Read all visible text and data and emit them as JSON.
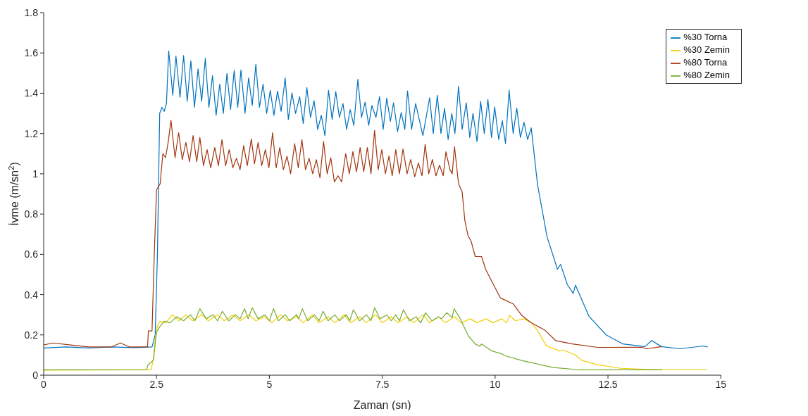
{
  "chart_data": {
    "type": "line",
    "xlabel": "Zaman (sn)",
    "ylabel": "İvme (m/sn$^{2}$)",
    "xlim": [
      0,
      15
    ],
    "xticks": [
      0,
      2.5,
      5,
      7.5,
      10,
      12.5,
      15
    ],
    "ylim": [
      0,
      1.8
    ],
    "yticks": [
      0,
      0.2,
      0.4,
      0.6,
      0.8,
      1,
      1.2,
      1.4,
      1.6,
      1.8
    ],
    "legend": "top right",
    "series": [
      {
        "name": "%30 Torna",
        "color": "#0072bd",
        "x": [
          0,
          0.5,
          1,
          1.5,
          2,
          2.4,
          2.47,
          2.52,
          2.57,
          2.62,
          2.67,
          2.72,
          2.77,
          2.86,
          2.93,
          3.02,
          3.1,
          3.18,
          3.26,
          3.34,
          3.42,
          3.5,
          3.58,
          3.66,
          3.74,
          3.82,
          3.9,
          3.98,
          4.06,
          4.14,
          4.22,
          4.3,
          4.37,
          4.46,
          4.54,
          4.62,
          4.7,
          4.78,
          4.86,
          4.94,
          5.02,
          5.1,
          5.18,
          5.26,
          5.35,
          5.42,
          5.5,
          5.58,
          5.67,
          5.75,
          5.83,
          5.91,
          5.99,
          6.07,
          6.15,
          6.23,
          6.31,
          6.39,
          6.47,
          6.55,
          6.63,
          6.71,
          6.79,
          6.87,
          6.96,
          7.04,
          7.12,
          7.2,
          7.27,
          7.36,
          7.44,
          7.52,
          7.6,
          7.68,
          7.75,
          7.84,
          7.92,
          8.0,
          8.06,
          8.15,
          8.24,
          8.4,
          8.55,
          8.63,
          8.72,
          8.8,
          8.88,
          8.96,
          9.04,
          9.11,
          9.19,
          9.27,
          9.36,
          9.44,
          9.51,
          9.6,
          9.68,
          9.76,
          9.84,
          9.92,
          9.99,
          10.08,
          10.16,
          10.23,
          10.31,
          10.4,
          10.48,
          10.56,
          10.64,
          10.72,
          10.8,
          10.94,
          11.15,
          11.38,
          11.45,
          11.6,
          11.73,
          11.78,
          12.08,
          12.46,
          12.83,
          13.32,
          13.47,
          13.68,
          14.1,
          14.61,
          14.71
        ],
        "values": [
          0.135,
          0.14,
          0.135,
          0.14,
          0.137,
          0.14,
          0.2,
          0.6,
          1.3,
          1.33,
          1.31,
          1.35,
          1.61,
          1.39,
          1.584,
          1.38,
          1.587,
          1.36,
          1.561,
          1.33,
          1.521,
          1.36,
          1.573,
          1.33,
          1.487,
          1.29,
          1.445,
          1.3,
          1.498,
          1.32,
          1.513,
          1.33,
          1.516,
          1.3,
          1.476,
          1.34,
          1.544,
          1.33,
          1.445,
          1.3,
          1.414,
          1.29,
          1.411,
          1.31,
          1.476,
          1.27,
          1.401,
          1.3,
          1.383,
          1.25,
          1.428,
          1.28,
          1.363,
          1.22,
          1.29,
          1.19,
          1.414,
          1.27,
          1.408,
          1.28,
          1.349,
          1.22,
          1.318,
          1.24,
          1.469,
          1.28,
          1.356,
          1.24,
          1.339,
          1.28,
          1.383,
          1.22,
          1.376,
          1.26,
          1.352,
          1.21,
          1.304,
          1.22,
          1.412,
          1.22,
          1.349,
          1.19,
          1.378,
          1.2,
          1.39,
          1.2,
          1.325,
          1.17,
          1.3,
          1.2,
          1.435,
          1.22,
          1.352,
          1.18,
          1.3,
          1.16,
          1.359,
          1.2,
          1.369,
          1.18,
          1.332,
          1.17,
          1.263,
          1.15,
          1.415,
          1.2,
          1.326,
          1.18,
          1.256,
          1.17,
          1.228,
          0.946,
          0.688,
          0.526,
          0.55,
          0.45,
          0.406,
          0.447,
          0.292,
          0.2,
          0.155,
          0.142,
          0.172,
          0.142,
          0.131,
          0.145,
          0.14
        ]
      },
      {
        "name": "%30 Zemin",
        "color": "#f2cf00",
        "x": [
          0,
          1,
          2.0,
          2.38,
          2.43,
          2.48,
          2.53,
          2.58,
          2.7,
          2.85,
          3.0,
          3.15,
          3.3,
          3.5,
          3.65,
          3.85,
          4.0,
          4.2,
          4.35,
          4.55,
          4.7,
          4.9,
          5.05,
          5.25,
          5.4,
          5.6,
          5.75,
          5.95,
          6.1,
          6.3,
          6.45,
          6.65,
          6.8,
          7.0,
          7.15,
          7.35,
          7.5,
          7.7,
          7.85,
          8.05,
          8.2,
          8.4,
          8.55,
          8.75,
          8.9,
          9.1,
          9.25,
          9.45,
          9.6,
          9.8,
          9.95,
          10.15,
          10.25,
          10.32,
          10.45,
          10.64,
          10.82,
          10.95,
          11.13,
          11.2,
          11.43,
          11.5,
          11.76,
          11.92,
          12.27,
          12.78,
          13.5,
          14.7
        ],
        "values": [
          0.025,
          0.026,
          0.027,
          0.027,
          0.08,
          0.2,
          0.25,
          0.268,
          0.26,
          0.3,
          0.27,
          0.3,
          0.27,
          0.3,
          0.27,
          0.3,
          0.27,
          0.3,
          0.27,
          0.3,
          0.27,
          0.29,
          0.26,
          0.3,
          0.27,
          0.29,
          0.26,
          0.3,
          0.26,
          0.29,
          0.26,
          0.3,
          0.26,
          0.29,
          0.26,
          0.3,
          0.26,
          0.29,
          0.26,
          0.29,
          0.26,
          0.3,
          0.26,
          0.29,
          0.26,
          0.29,
          0.26,
          0.28,
          0.26,
          0.28,
          0.26,
          0.28,
          0.26,
          0.297,
          0.27,
          0.28,
          0.258,
          0.217,
          0.148,
          0.14,
          0.12,
          0.125,
          0.103,
          0.073,
          0.052,
          0.034,
          0.028,
          0.028
        ]
      },
      {
        "name": "%80 Torna",
        "color": "#a2340e",
        "x": [
          0,
          0.2,
          0.6,
          1.0,
          1.5,
          1.7,
          1.9,
          2.3,
          2.32,
          2.4,
          2.45,
          2.5,
          2.58,
          2.64,
          2.7,
          2.76,
          2.82,
          2.91,
          2.99,
          3.07,
          3.15,
          3.23,
          3.31,
          3.39,
          3.46,
          3.54,
          3.62,
          3.7,
          3.79,
          3.87,
          3.95,
          4.03,
          4.11,
          4.19,
          4.27,
          4.35,
          4.43,
          4.51,
          4.6,
          4.67,
          4.75,
          4.83,
          4.91,
          4.99,
          5.07,
          5.15,
          5.23,
          5.31,
          5.39,
          5.47,
          5.56,
          5.64,
          5.72,
          5.8,
          5.88,
          5.96,
          6.04,
          6.12,
          6.2,
          6.28,
          6.36,
          6.44,
          6.52,
          6.6,
          6.69,
          6.77,
          6.85,
          6.93,
          7.01,
          7.09,
          7.17,
          7.25,
          7.33,
          7.41,
          7.49,
          7.57,
          7.65,
          7.72,
          7.8,
          7.88,
          7.96,
          8.05,
          8.13,
          8.22,
          8.3,
          8.38,
          8.45,
          8.53,
          8.61,
          8.69,
          8.77,
          8.85,
          8.91,
          9.0,
          9.05,
          9.1,
          9.19,
          9.27,
          9.33,
          9.4,
          9.47,
          9.56,
          9.7,
          9.79,
          9.93,
          10.12,
          10.4,
          10.59,
          10.78,
          11.1,
          11.34,
          11.71,
          12.27,
          13.25,
          13.35,
          13.7
        ],
        "values": [
          0.15,
          0.16,
          0.15,
          0.14,
          0.14,
          0.16,
          0.14,
          0.14,
          0.22,
          0.22,
          0.6,
          0.92,
          0.95,
          1.1,
          1.08,
          1.16,
          1.266,
          1.08,
          1.204,
          1.07,
          1.156,
          1.06,
          1.19,
          1.06,
          1.18,
          1.04,
          1.12,
          1.03,
          1.13,
          1.04,
          1.17,
          1.04,
          1.12,
          1.03,
          1.077,
          1.02,
          1.14,
          1.04,
          1.173,
          1.05,
          1.156,
          1.04,
          1.12,
          1.03,
          1.204,
          1.03,
          1.13,
          1.02,
          1.087,
          1.0,
          1.15,
          1.03,
          1.17,
          1.02,
          1.077,
          1.0,
          1.07,
          0.98,
          1.16,
          1.0,
          1.08,
          0.96,
          0.99,
          0.96,
          1.1,
          1.0,
          1.11,
          1.01,
          1.13,
          1.01,
          1.13,
          1.0,
          1.215,
          1.02,
          1.12,
          1.0,
          1.088,
          0.99,
          1.12,
          1.0,
          1.123,
          1.0,
          1.071,
          0.985,
          1.054,
          0.99,
          1.146,
          1.0,
          1.071,
          0.99,
          1.043,
          0.99,
          1.109,
          1.02,
          1.0,
          1.135,
          0.951,
          0.91,
          0.767,
          0.693,
          0.664,
          0.589,
          0.589,
          0.526,
          0.464,
          0.383,
          0.354,
          0.297,
          0.263,
          0.224,
          0.172,
          0.155,
          0.138,
          0.139,
          0.131,
          0.142
        ]
      },
      {
        "name": "%80 Zemin",
        "color": "#77ac30",
        "x": [
          0,
          1,
          2.28,
          2.31,
          2.43,
          2.5,
          2.57,
          2.67,
          2.8,
          2.95,
          3.1,
          3.25,
          3.35,
          3.46,
          3.6,
          3.75,
          3.85,
          3.96,
          4.1,
          4.25,
          4.35,
          4.45,
          4.53,
          4.62,
          4.75,
          4.9,
          5.0,
          5.09,
          5.2,
          5.35,
          5.45,
          5.6,
          5.65,
          5.73,
          5.85,
          6.0,
          6.1,
          6.19,
          6.3,
          6.45,
          6.55,
          6.7,
          6.78,
          6.86,
          7.0,
          7.15,
          7.25,
          7.33,
          7.45,
          7.6,
          7.7,
          7.8,
          7.88,
          7.97,
          8.1,
          8.25,
          8.35,
          8.46,
          8.6,
          8.75,
          8.81,
          8.93,
          9.05,
          9.09,
          9.23,
          9.41,
          9.56,
          9.66,
          9.7,
          9.93,
          10.12,
          10.23,
          10.59,
          11.0,
          11.29,
          11.85,
          13.7
        ],
        "values": [
          0.027,
          0.027,
          0.028,
          0.05,
          0.075,
          0.213,
          0.24,
          0.268,
          0.26,
          0.29,
          0.27,
          0.3,
          0.27,
          0.33,
          0.28,
          0.3,
          0.27,
          0.317,
          0.27,
          0.3,
          0.28,
          0.33,
          0.28,
          0.335,
          0.28,
          0.3,
          0.27,
          0.33,
          0.27,
          0.3,
          0.27,
          0.3,
          0.28,
          0.33,
          0.27,
          0.3,
          0.27,
          0.317,
          0.27,
          0.3,
          0.27,
          0.3,
          0.27,
          0.325,
          0.27,
          0.3,
          0.27,
          0.335,
          0.28,
          0.3,
          0.27,
          0.3,
          0.27,
          0.325,
          0.27,
          0.29,
          0.26,
          0.31,
          0.27,
          0.29,
          0.28,
          0.31,
          0.286,
          0.33,
          0.28,
          0.194,
          0.155,
          0.143,
          0.155,
          0.12,
          0.108,
          0.096,
          0.073,
          0.052,
          0.038,
          0.027,
          0.027
        ]
      }
    ]
  }
}
